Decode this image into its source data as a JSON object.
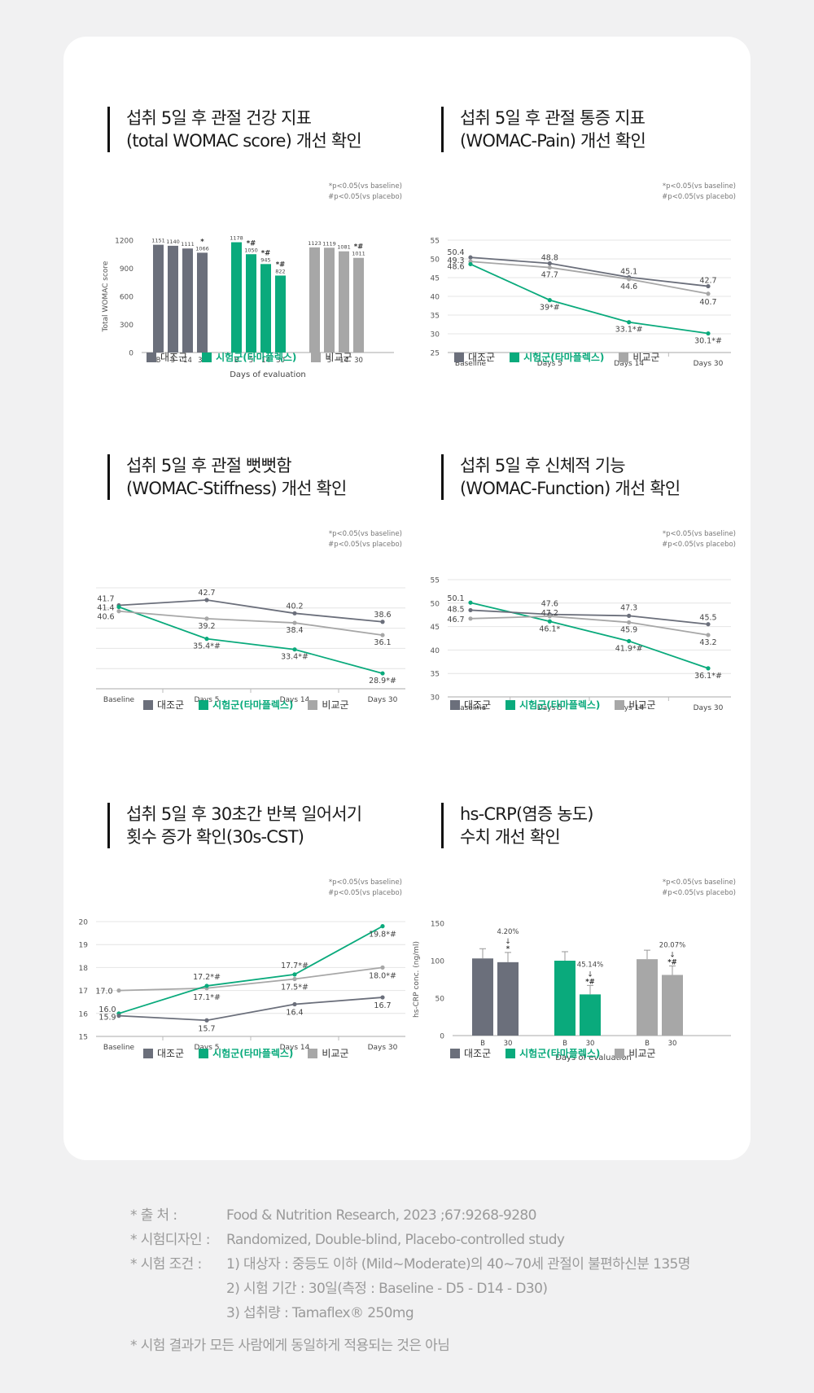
{
  "colors": {
    "control": "#6b6f7b",
    "test": "#0aaa7c",
    "compare": "#a7a7a7",
    "grid": "#e4e4e4",
    "axis": "#bbbbbb"
  },
  "legend": [
    "대조군",
    "시험군(타마플렉스)",
    "비교군"
  ],
  "significance": [
    "*p<0.05(vs baseline)",
    "#p<0.05(vs placebo)"
  ],
  "panels": [
    {
      "id": "womac-total",
      "title": [
        "섭취 5일 후 관절 건강 지표",
        "(total WOMAC score) 개선 확인"
      ]
    },
    {
      "id": "womac-pain",
      "title": [
        "섭취 5일 후 관절 통증 지표",
        "(WOMAC-Pain) 개선 확인"
      ]
    },
    {
      "id": "womac-stiffness",
      "title": [
        "섭취 5일 후 관절 뻣뻣함",
        "(WOMAC-Stiffness) 개선 확인"
      ]
    },
    {
      "id": "womac-function",
      "title": [
        "섭취 5일 후 신체적 기능",
        "(WOMAC-Function) 개선 확인"
      ]
    },
    {
      "id": "cst",
      "title": [
        "섭취 5일 후 30초간 반복 일어서기",
        "횟수 증가 확인(30s-CST)"
      ]
    },
    {
      "id": "hscrp",
      "title": [
        "hs-CRP(염증 농도)",
        "수치 개선 확인"
      ]
    }
  ],
  "chart_data": [
    {
      "type": "bar",
      "ylabel": "Total WOMAC score",
      "xlabel": "Days of evaluation",
      "ylim": [
        0,
        1200
      ],
      "yticks": [
        0,
        300,
        600,
        900,
        1200
      ],
      "groups": [
        {
          "name": "대조군",
          "categories": [
            "B",
            "5",
            "14",
            "30"
          ],
          "values": [
            1151,
            1140,
            1111,
            1066
          ],
          "labels": [
            "1151",
            "1140",
            "1111",
            "1066"
          ],
          "marks": [
            "",
            "",
            "",
            "*"
          ]
        },
        {
          "name": "시험군(타마플렉스)",
          "categories": [
            "B",
            "5",
            "14",
            "30"
          ],
          "values": [
            1178,
            1050,
            945,
            822
          ],
          "labels": [
            "1178",
            "1050",
            "945",
            "822"
          ],
          "marks": [
            "",
            "*#",
            "*#",
            "*#"
          ]
        },
        {
          "name": "비교군",
          "categories": [
            "B",
            "5",
            "14",
            "30"
          ],
          "values": [
            1123,
            1119,
            1081,
            1011
          ],
          "labels": [
            "1123",
            "1119",
            "1081",
            "1011"
          ],
          "marks": [
            "",
            "",
            "",
            "*#"
          ]
        }
      ],
      "grid": false
    },
    {
      "type": "line",
      "categories": [
        "Baseline",
        "Days 5",
        "Days 14",
        "Days 30"
      ],
      "ylim": [
        25,
        55
      ],
      "yticks": [
        25,
        30,
        35,
        40,
        45,
        50,
        55
      ],
      "series": [
        {
          "name": "대조군",
          "values": [
            50.4,
            48.8,
            45.1,
            42.7
          ],
          "labels": [
            "50.4",
            "48.8",
            "45.1",
            "42.7"
          ]
        },
        {
          "name": "비교군",
          "values": [
            49.3,
            47.7,
            44.6,
            40.7
          ],
          "labels": [
            "49.3",
            "47.7",
            "44.6",
            "40.7"
          ]
        },
        {
          "name": "시험군(타마플렉스)",
          "values": [
            48.6,
            39,
            33.1,
            30.1
          ],
          "labels": [
            "48.6",
            "39*#",
            "33.1*#",
            "30.1*#"
          ]
        }
      ],
      "grid": true
    },
    {
      "type": "line",
      "categories": [
        "Baseline",
        "Days 5",
        "Days 14",
        "Days 30"
      ],
      "ylim": [
        26,
        45
      ],
      "series": [
        {
          "name": "대조군",
          "values": [
            41.7,
            42.7,
            40.2,
            38.6
          ],
          "labels": [
            "41.7",
            "42.7",
            "40.2",
            "38.6"
          ]
        },
        {
          "name": "시험군(타마플렉스)",
          "values": [
            41.4,
            35.4,
            33.4,
            28.9
          ],
          "labels": [
            "41.4",
            "35.4*#",
            "33.4*#",
            "28.9*#"
          ]
        },
        {
          "name": "비교군",
          "values": [
            40.6,
            39.2,
            38.4,
            36.1
          ],
          "labels": [
            "40.6",
            "39.2",
            "38.4",
            "36.1"
          ]
        }
      ],
      "grid": true
    },
    {
      "type": "line",
      "categories": [
        "Baseline",
        "Days 5",
        "Days 14",
        "Days 30"
      ],
      "ylim": [
        30,
        55
      ],
      "yticks": [
        30,
        35,
        40,
        45,
        50,
        55
      ],
      "series": [
        {
          "name": "시험군(타마플렉스)",
          "values": [
            50.1,
            46.1,
            41.9,
            36.1
          ],
          "labels": [
            "50.1",
            "46.1*",
            "41.9*#",
            "36.1*#"
          ]
        },
        {
          "name": "대조군",
          "values": [
            48.5,
            47.6,
            47.3,
            45.5
          ],
          "labels": [
            "48.5",
            "47.6",
            "47.3",
            "45.5"
          ]
        },
        {
          "name": "비교군",
          "values": [
            46.7,
            47.2,
            45.9,
            43.2
          ],
          "labels": [
            "46.7",
            "47.2",
            "45.9",
            "43.2"
          ]
        }
      ],
      "grid": true
    },
    {
      "type": "line",
      "categories": [
        "Baseline",
        "Days 5",
        "Days 14",
        "Days 30"
      ],
      "ylim": [
        15,
        20
      ],
      "yticks": [
        15,
        16,
        17,
        18,
        19,
        20
      ],
      "series": [
        {
          "name": "비교군",
          "values": [
            17.0,
            17.1,
            17.5,
            18.0
          ],
          "labels": [
            "17.0",
            "17.1*#",
            "17.5*#",
            "18.0*#"
          ]
        },
        {
          "name": "시험군(타마플렉스)",
          "values": [
            16.0,
            17.2,
            17.7,
            19.8
          ],
          "labels": [
            "16.0",
            "17.2*#",
            "17.7*#",
            "19.8*#"
          ]
        },
        {
          "name": "대조군",
          "values": [
            15.9,
            15.7,
            16.4,
            16.7
          ],
          "labels": [
            "15.9",
            "15.7",
            "16.4",
            "16.7"
          ]
        }
      ],
      "grid": true
    },
    {
      "type": "bar",
      "ylabel": "hs-CRP conc. (ng/ml)",
      "xlabel": "Days of evaluation",
      "ylim": [
        0,
        150
      ],
      "yticks": [
        0,
        50,
        100,
        150
      ],
      "groups": [
        {
          "name": "대조군",
          "categories": [
            "B",
            "30"
          ],
          "values": [
            103,
            98
          ],
          "errors": [
            13,
            13
          ],
          "annotation": "4.20%",
          "marks": [
            "",
            "*"
          ]
        },
        {
          "name": "시험군(타마플렉스)",
          "categories": [
            "B",
            "30"
          ],
          "values": [
            100,
            55
          ],
          "errors": [
            12,
            12
          ],
          "annotation": "45.14%",
          "marks": [
            "",
            "*#"
          ]
        },
        {
          "name": "비교군",
          "categories": [
            "B",
            "30"
          ],
          "values": [
            102,
            81
          ],
          "errors": [
            12,
            12
          ],
          "annotation": "20.07%",
          "marks": [
            "",
            "*#"
          ]
        }
      ],
      "grid": false
    }
  ],
  "notes": {
    "source_label": "* 출        처 :",
    "source": "Food & Nutrition Research, 2023 ;67:9268-9280",
    "design_label": "* 시험디자인 :",
    "design": "Randomized, Double-blind, Placebo-controlled study",
    "cond_label": "* 시험   조건 :",
    "cond1": "1) 대상자 : 중등도 이하 (Mild~Moderate)의 40~70세 관절이 불편하신분 135명",
    "cond2": "2) 시험 기간 : 30일(측정 : Baseline  -  D5  -  D14  -  D30)",
    "cond3": "3) 섭취량 : Tamaflex® 250mg",
    "disclaimer": "* 시험 결과가 모든 사람에게 동일하게 적용되는 것은 아님"
  }
}
